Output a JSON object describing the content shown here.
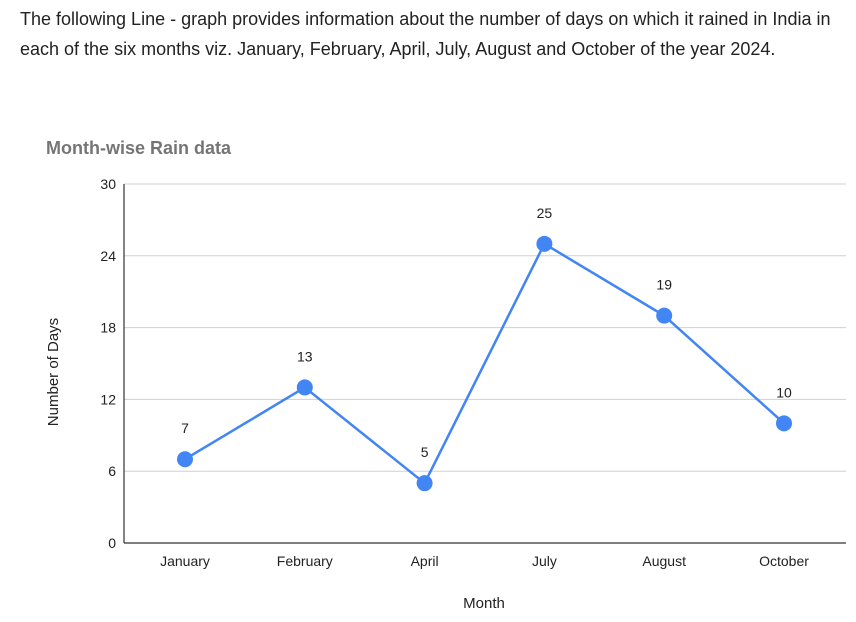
{
  "intro_text": "The following Line - graph provides information about the number of days on which it rained in India in each of the six months viz. January, February, April, July, August and October of the year 2024.",
  "chart_data": {
    "type": "line",
    "title": "Month-wise Rain data",
    "xlabel": "Month",
    "ylabel": "Number of Days",
    "categories": [
      "January",
      "February",
      "April",
      "July",
      "August",
      "October"
    ],
    "series": [
      {
        "values": [
          7,
          13,
          5,
          25,
          19,
          10
        ],
        "color": "#4285f4"
      }
    ],
    "data_labels": [
      "7",
      "13",
      "5",
      "25",
      "19",
      "10"
    ],
    "ylim": [
      0,
      30
    ],
    "yticks": [
      "0",
      "6",
      "12",
      "18",
      "24",
      "30"
    ],
    "grid": true,
    "legend": "none"
  }
}
